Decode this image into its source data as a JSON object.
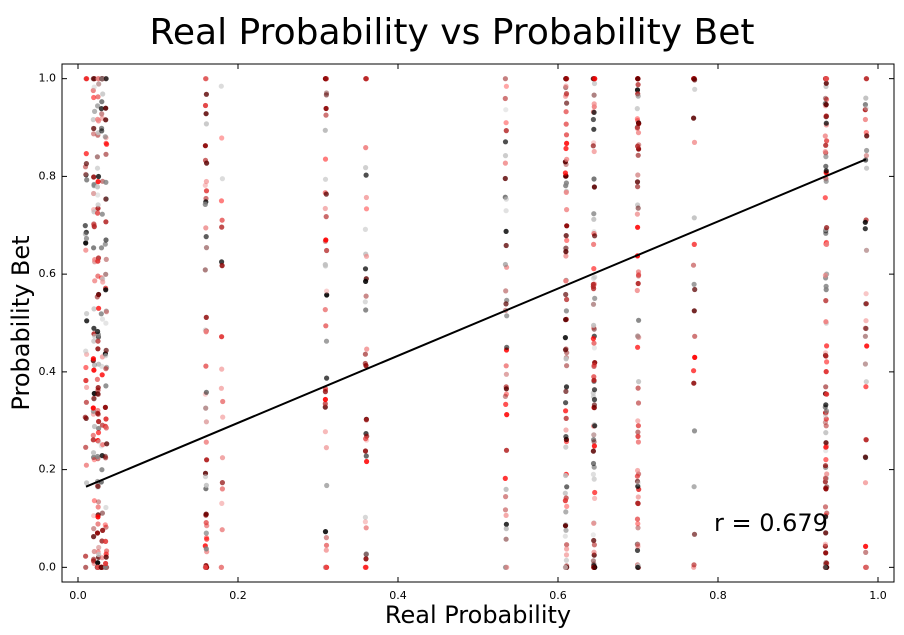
{
  "chart_data": {
    "type": "scatter",
    "title": "Real Probability vs Probability Bet",
    "xlabel": "Real Probability",
    "ylabel": "Probability Bet",
    "xlim": [
      -0.02,
      1.02
    ],
    "ylim": [
      -0.03,
      1.03
    ],
    "xticks": [
      "0.0",
      "0.2",
      "0.4",
      "0.6",
      "0.8",
      "1.0"
    ],
    "yticks": [
      "0.0",
      "0.2",
      "0.4",
      "0.6",
      "0.8",
      "1.0"
    ],
    "grid": false,
    "columns_x": [
      0.01,
      0.02,
      0.025,
      0.03,
      0.035,
      0.16,
      0.18,
      0.31,
      0.36,
      0.535,
      0.61,
      0.645,
      0.7,
      0.77,
      0.935,
      0.985
    ],
    "column_density": [
      30,
      55,
      70,
      40,
      50,
      55,
      20,
      45,
      40,
      45,
      90,
      90,
      70,
      25,
      110,
      40
    ],
    "regression_line": {
      "x": [
        0.01,
        0.985
      ],
      "y": [
        0.165,
        0.835
      ],
      "color": "#000000"
    },
    "point_colors": [
      "#ff0000",
      "#b22222",
      "#8b0000",
      "#e03030",
      "#000000",
      "#808080",
      "#c0c0c0",
      "#f08080",
      "#5a0000"
    ],
    "annotation": "r = 0.679"
  }
}
